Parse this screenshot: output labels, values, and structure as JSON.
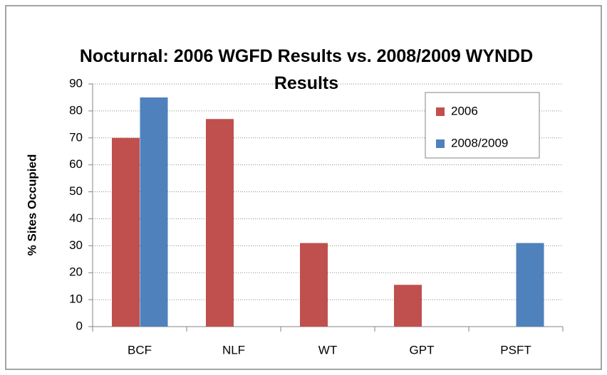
{
  "chart_data": {
    "type": "bar",
    "title": "Nocturnal:  2006 WGFD Results vs. 2008/2009 WYNDD Results",
    "y_label": "% Sites Occupied",
    "categories": [
      "BCF",
      "NLF",
      "WT",
      "GPT",
      "PSFT"
    ],
    "series": [
      {
        "name": "2006",
        "color": "#c0504d",
        "values": [
          70,
          77,
          31,
          15.5,
          0
        ]
      },
      {
        "name": "2008/2009",
        "color": "#4f81bd",
        "values": [
          85,
          0,
          0,
          0,
          31
        ]
      }
    ],
    "ylim": [
      0,
      90
    ],
    "yticks": [
      0,
      10,
      20,
      30,
      40,
      50,
      60,
      70,
      80,
      90
    ],
    "grid": true,
    "legend": "top-right"
  }
}
